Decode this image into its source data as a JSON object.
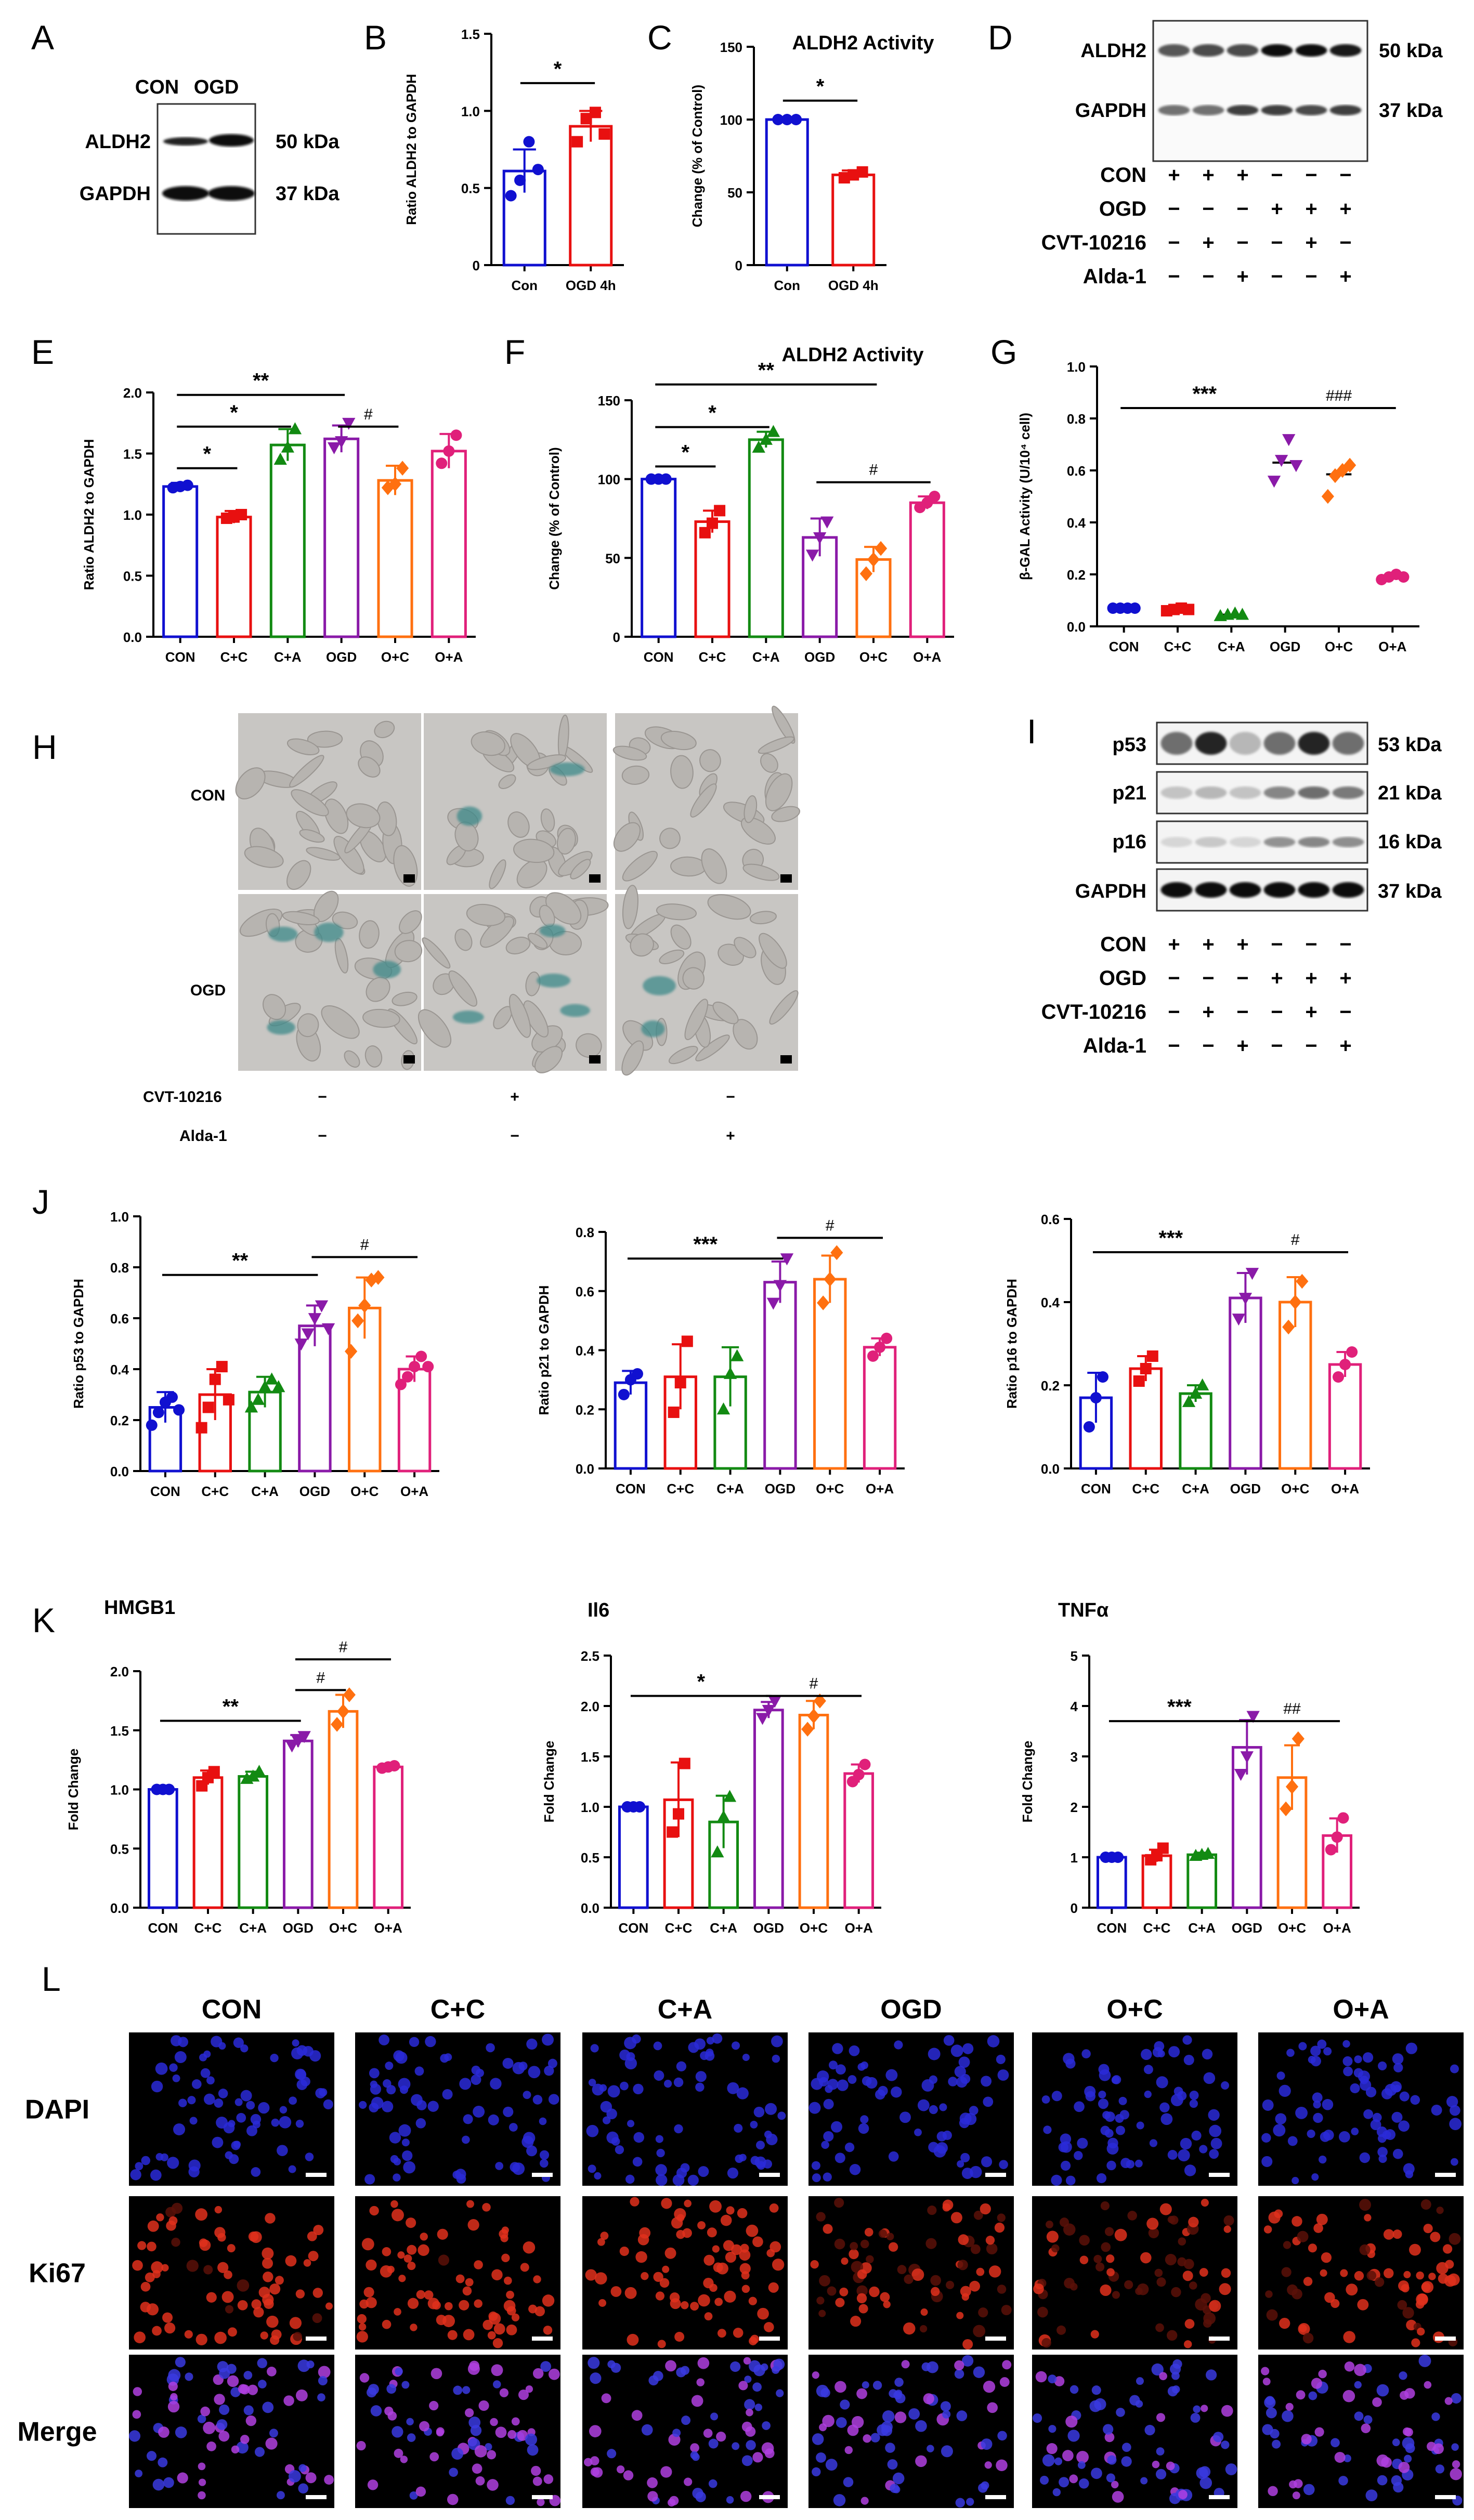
{
  "panel_labels": [
    "A",
    "B",
    "C",
    "D",
    "E",
    "F",
    "G",
    "H",
    "I",
    "J",
    "K",
    "L"
  ],
  "blot_A": {
    "lanes": [
      "CON",
      "OGD"
    ],
    "rows": [
      {
        "name": "ALDH2",
        "kda": "50 kDa"
      },
      {
        "name": "GAPDH",
        "kda": "37 kDa"
      }
    ]
  },
  "blot_D": {
    "rows": [
      {
        "name": "ALDH2",
        "kda": "50 kDa"
      },
      {
        "name": "GAPDH",
        "kda": "37 kDa"
      }
    ],
    "conditions": [
      {
        "name": "CON",
        "signs": [
          "+",
          "+",
          "+",
          "−",
          "−",
          "−"
        ]
      },
      {
        "name": "OGD",
        "signs": [
          "−",
          "−",
          "−",
          "+",
          "+",
          "+"
        ]
      },
      {
        "name": "CVT-10216",
        "signs": [
          "−",
          "+",
          "−",
          "−",
          "+",
          "−"
        ]
      },
      {
        "name": "Alda-1",
        "signs": [
          "−",
          "−",
          "+",
          "−",
          "−",
          "+"
        ]
      }
    ]
  },
  "blot_I": {
    "rows": [
      {
        "name": "p53",
        "kda": "53 kDa"
      },
      {
        "name": "p21",
        "kda": "21 kDa"
      },
      {
        "name": "p16",
        "kda": "16 kDa"
      },
      {
        "name": "GAPDH",
        "kda": "37 kDa"
      }
    ],
    "conditions": [
      {
        "name": "CON",
        "signs": [
          "+",
          "+",
          "+",
          "−",
          "−",
          "−"
        ]
      },
      {
        "name": "OGD",
        "signs": [
          "−",
          "−",
          "−",
          "+",
          "+",
          "+"
        ]
      },
      {
        "name": "CVT-10216",
        "signs": [
          "−",
          "+",
          "−",
          "−",
          "+",
          "−"
        ]
      },
      {
        "name": "Alda-1",
        "signs": [
          "−",
          "−",
          "+",
          "−",
          "−",
          "+"
        ]
      }
    ]
  },
  "micro_H": {
    "rows": [
      "CON",
      "OGD"
    ],
    "conditions": [
      {
        "name": "CVT-10216",
        "signs": [
          "−",
          "+",
          "−"
        ]
      },
      {
        "name": "Alda-1",
        "signs": [
          "−",
          "−",
          "+"
        ]
      }
    ]
  },
  "micro_L": {
    "columns": [
      "CON",
      "C+C",
      "C+A",
      "OGD",
      "O+C",
      "O+A"
    ],
    "rows": [
      "DAPI",
      "Ki67",
      "Merge"
    ]
  },
  "colors": {
    "CON": "#1010d0",
    "C+C": "#e81010",
    "C+A": "#128a12",
    "OGD": "#8a1aa8",
    "O+C": "#ff7010",
    "O+A": "#e0207a"
  },
  "chart_data": [
    {
      "id": "B",
      "type": "bar",
      "title": "",
      "ylabel": "Ratio ALDH2 to GAPDH",
      "categories": [
        "Con",
        "OGD 4h"
      ],
      "values": [
        0.61,
        0.9
      ],
      "err": [
        0.14,
        0.1
      ],
      "ylim": [
        0,
        1.5
      ],
      "yticks": [
        "0",
        "0.5",
        "1.0",
        "1.5"
      ],
      "points": [
        [
          0.45,
          0.55,
          0.8,
          0.62
        ],
        [
          0.8,
          0.95,
          0.99,
          0.85
        ]
      ],
      "markers": [
        "circle",
        "square"
      ],
      "colors": [
        "#1010d0",
        "#e81010"
      ],
      "sig": [
        {
          "from": 0,
          "to": 1,
          "text": "*",
          "y": 1.18
        }
      ]
    },
    {
      "id": "C",
      "type": "bar",
      "title": "ALDH2 Activity",
      "ylabel": "Change (% of Control)",
      "categories": [
        "Con",
        "OGD 4h"
      ],
      "values": [
        100,
        62
      ],
      "err": [
        0,
        3
      ],
      "ylim": [
        0,
        150
      ],
      "yticks": [
        "0",
        "50",
        "100",
        "150"
      ],
      "points": [
        [
          100,
          100,
          100
        ],
        [
          60,
          62,
          64
        ]
      ],
      "markers": [
        "circle",
        "square"
      ],
      "colors": [
        "#1010d0",
        "#e81010"
      ],
      "sig": [
        {
          "from": 0,
          "to": 1,
          "text": "*",
          "y": 113
        }
      ]
    },
    {
      "id": "E",
      "type": "bar",
      "title": "",
      "ylabel": "Ratio ALDH2 to GAPDH",
      "categories": [
        "CON",
        "C+C",
        "C+A",
        "OGD",
        "O+C",
        "O+A"
      ],
      "values": [
        1.23,
        0.98,
        1.57,
        1.62,
        1.28,
        1.52
      ],
      "err": [
        0.03,
        0.05,
        0.13,
        0.11,
        0.12,
        0.14
      ],
      "ylim": [
        0,
        2.0
      ],
      "yticks": [
        "0.0",
        "0.5",
        "1.0",
        "1.5",
        "2.0"
      ],
      "points": [
        [
          1.22,
          1.23,
          1.24
        ],
        [
          0.97,
          0.98,
          1.0
        ],
        [
          1.45,
          1.55,
          1.7
        ],
        [
          1.55,
          1.6,
          1.75
        ],
        [
          1.22,
          1.25,
          1.38
        ],
        [
          1.42,
          1.52,
          1.65
        ]
      ],
      "markers": [
        "circle",
        "square",
        "triangle",
        "tridown",
        "diamond",
        "circle"
      ],
      "colors": [
        "#1010d0",
        "#e81010",
        "#128a12",
        "#8a1aa8",
        "#ff7010",
        "#e0207a"
      ],
      "sig": [
        {
          "from": 0,
          "to": 1,
          "text": "*",
          "y": 1.38
        },
        {
          "from": 0,
          "to": 2,
          "text": "*",
          "y": 1.72
        },
        {
          "from": 0,
          "to": 3,
          "text": "**",
          "y": 1.98
        },
        {
          "from": 3,
          "to": 4,
          "text": "#",
          "y": 1.72
        }
      ]
    },
    {
      "id": "F",
      "type": "bar",
      "title": "ALDH2 Activity",
      "ylabel": "Change (% of Control)",
      "categories": [
        "CON",
        "C+C",
        "C+A",
        "OGD",
        "O+C",
        "O+A"
      ],
      "values": [
        100,
        73,
        125,
        63,
        49,
        85
      ],
      "err": [
        0,
        7,
        5,
        12,
        8,
        4
      ],
      "ylim": [
        0,
        150
      ],
      "yticks": [
        "0",
        "50",
        "100",
        "150"
      ],
      "points": [
        [
          100,
          100,
          100
        ],
        [
          66,
          72,
          80
        ],
        [
          120,
          125,
          130
        ],
        [
          52,
          63,
          73
        ],
        [
          40,
          49,
          56
        ],
        [
          82,
          85,
          89
        ]
      ],
      "markers": [
        "circle",
        "square",
        "triangle",
        "tridown",
        "diamond",
        "circle"
      ],
      "colors": [
        "#1010d0",
        "#e81010",
        "#128a12",
        "#8a1aa8",
        "#ff7010",
        "#e0207a"
      ],
      "sig": [
        {
          "from": 0,
          "to": 1,
          "text": "*",
          "y": 108
        },
        {
          "from": 0,
          "to": 2,
          "text": "*",
          "y": 133
        },
        {
          "from": 0,
          "to": 4,
          "text": "**",
          "y": 160
        },
        {
          "from": 3,
          "to": 5,
          "text": "#",
          "y": 98
        }
      ]
    },
    {
      "id": "G",
      "type": "dot",
      "title": "",
      "ylabel": "β-GAL Activity (U/10⁴ cell)",
      "categories": [
        "CON",
        "C+C",
        "C+A",
        "OGD",
        "O+C",
        "O+A"
      ],
      "values": [
        0.07,
        0.065,
        0.045,
        0.63,
        0.585,
        0.19
      ],
      "ylim": [
        0,
        1.0
      ],
      "yticks": [
        "0.0",
        "0.2",
        "0.4",
        "0.6",
        "0.8",
        "1.0"
      ],
      "points": [
        [
          0.07,
          0.07,
          0.07,
          0.07
        ],
        [
          0.06,
          0.065,
          0.07,
          0.065
        ],
        [
          0.04,
          0.045,
          0.05,
          0.045
        ],
        [
          0.56,
          0.64,
          0.72,
          0.62
        ],
        [
          0.5,
          0.58,
          0.6,
          0.62
        ],
        [
          0.18,
          0.19,
          0.2,
          0.19
        ]
      ],
      "markers": [
        "circle",
        "square",
        "triangle",
        "tridown",
        "diamond",
        "circle"
      ],
      "colors": [
        "#1010d0",
        "#e81010",
        "#128a12",
        "#8a1aa8",
        "#ff7010",
        "#e0207a"
      ],
      "sig": [
        {
          "from": 0,
          "to": 3,
          "text": "***",
          "y": 0.84
        },
        {
          "from": 3,
          "to": 5,
          "text": "###",
          "y": 0.84
        }
      ]
    },
    {
      "id": "J1",
      "type": "bar",
      "title": "",
      "ylabel": "Ratio p53 to GAPDH",
      "categories": [
        "CON",
        "C+C",
        "C+A",
        "OGD",
        "O+C",
        "O+A"
      ],
      "values": [
        0.25,
        0.3,
        0.31,
        0.57,
        0.64,
        0.4
      ],
      "err": [
        0.06,
        0.1,
        0.06,
        0.08,
        0.12,
        0.05
      ],
      "ylim": [
        0,
        1.0
      ],
      "yticks": [
        "0.0",
        "0.2",
        "0.4",
        "0.6",
        "0.8",
        "1.0"
      ],
      "points": [
        [
          0.18,
          0.23,
          0.27,
          0.29,
          0.24
        ],
        [
          0.17,
          0.25,
          0.36,
          0.41,
          0.28
        ],
        [
          0.25,
          0.28,
          0.33,
          0.36,
          0.33
        ],
        [
          0.5,
          0.54,
          0.6,
          0.65,
          0.56
        ],
        [
          0.47,
          0.59,
          0.65,
          0.75,
          0.76
        ],
        [
          0.34,
          0.37,
          0.41,
          0.45,
          0.41
        ]
      ],
      "markers": [
        "circle",
        "square",
        "triangle",
        "tridown",
        "diamond",
        "circle"
      ],
      "colors": [
        "#1010d0",
        "#e81010",
        "#128a12",
        "#8a1aa8",
        "#ff7010",
        "#e0207a"
      ],
      "sig": [
        {
          "from": 0,
          "to": 3,
          "text": "**",
          "y": 0.77
        },
        {
          "from": 3,
          "to": 5,
          "text": "#",
          "y": 0.84
        }
      ]
    },
    {
      "id": "J2",
      "type": "bar",
      "title": "",
      "ylabel": "Ratio p21 to GAPDH",
      "categories": [
        "CON",
        "C+C",
        "C+A",
        "OGD",
        "O+C",
        "O+A"
      ],
      "values": [
        0.29,
        0.31,
        0.31,
        0.63,
        0.64,
        0.41
      ],
      "err": [
        0.04,
        0.11,
        0.1,
        0.07,
        0.08,
        0.03
      ],
      "ylim": [
        0,
        0.8
      ],
      "yticks": [
        "0.0",
        "0.2",
        "0.4",
        "0.6",
        "0.8"
      ],
      "points": [
        [
          0.25,
          0.3,
          0.32
        ],
        [
          0.19,
          0.29,
          0.43
        ],
        [
          0.2,
          0.32,
          0.38
        ],
        [
          0.56,
          0.62,
          0.71
        ],
        [
          0.56,
          0.64,
          0.73
        ],
        [
          0.38,
          0.41,
          0.44
        ]
      ],
      "markers": [
        "circle",
        "square",
        "triangle",
        "tridown",
        "diamond",
        "circle"
      ],
      "colors": [
        "#1010d0",
        "#e81010",
        "#128a12",
        "#8a1aa8",
        "#ff7010",
        "#e0207a"
      ],
      "sig": [
        {
          "from": 0,
          "to": 3,
          "text": "***",
          "y": 0.71
        },
        {
          "from": 3,
          "to": 5,
          "text": "#",
          "y": 0.78
        }
      ]
    },
    {
      "id": "J3",
      "type": "bar",
      "title": "",
      "ylabel": "Ratio p16 to GAPDH",
      "categories": [
        "CON",
        "C+C",
        "C+A",
        "OGD",
        "O+C",
        "O+A"
      ],
      "values": [
        0.17,
        0.24,
        0.18,
        0.41,
        0.4,
        0.25
      ],
      "err": [
        0.06,
        0.03,
        0.02,
        0.06,
        0.06,
        0.03
      ],
      "ylim": [
        0,
        0.6
      ],
      "yticks": [
        "0.0",
        "0.2",
        "0.4",
        "0.6"
      ],
      "points": [
        [
          0.1,
          0.17,
          0.22
        ],
        [
          0.21,
          0.24,
          0.27
        ],
        [
          0.16,
          0.18,
          0.2
        ],
        [
          0.36,
          0.41,
          0.47
        ],
        [
          0.34,
          0.4,
          0.45
        ],
        [
          0.22,
          0.25,
          0.28
        ]
      ],
      "markers": [
        "circle",
        "square",
        "triangle",
        "tridown",
        "diamond",
        "circle"
      ],
      "colors": [
        "#1010d0",
        "#e81010",
        "#128a12",
        "#8a1aa8",
        "#ff7010",
        "#e0207a"
      ],
      "sig": [
        {
          "from": 0,
          "to": 3,
          "text": "***",
          "y": 0.52
        },
        {
          "from": 3,
          "to": 5,
          "text": "#",
          "y": 0.52
        }
      ]
    },
    {
      "id": "K1",
      "type": "bar",
      "title": "HMGB1",
      "ylabel": "Fold Change",
      "categories": [
        "CON",
        "C+C",
        "C+A",
        "OGD",
        "O+C",
        "O+A"
      ],
      "values": [
        1.0,
        1.1,
        1.11,
        1.41,
        1.66,
        1.19
      ],
      "err": [
        0,
        0.06,
        0.04,
        0.05,
        0.14,
        0.02
      ],
      "ylim": [
        0,
        2.0
      ],
      "yticks": [
        "0.0",
        "0.5",
        "1.0",
        "1.5",
        "2.0"
      ],
      "points": [
        [
          1.0,
          1.0,
          1.0
        ],
        [
          1.03,
          1.1,
          1.15
        ],
        [
          1.09,
          1.11,
          1.15
        ],
        [
          1.37,
          1.41,
          1.45
        ],
        [
          1.55,
          1.66,
          1.8
        ],
        [
          1.18,
          1.19,
          1.2
        ]
      ],
      "markers": [
        "circle",
        "square",
        "triangle",
        "tridown",
        "diamond",
        "circle"
      ],
      "colors": [
        "#1010d0",
        "#e81010",
        "#128a12",
        "#8a1aa8",
        "#ff7010",
        "#e0207a"
      ],
      "sig": [
        {
          "from": 0,
          "to": 3,
          "text": "**",
          "y": 1.58
        },
        {
          "from": 3,
          "to": 4,
          "text": "#",
          "y": 1.84
        },
        {
          "from": 3,
          "to": 5,
          "text": "#",
          "y": 2.1
        }
      ]
    },
    {
      "id": "K2",
      "type": "bar",
      "title": "Il6",
      "ylabel": "Fold Change",
      "categories": [
        "CON",
        "C+C",
        "C+A",
        "OGD",
        "O+C",
        "O+A"
      ],
      "values": [
        1.0,
        1.07,
        0.85,
        1.96,
        1.91,
        1.33
      ],
      "err": [
        0,
        0.37,
        0.26,
        0.08,
        0.14,
        0.09
      ],
      "ylim": [
        0,
        2.5
      ],
      "yticks": [
        "0.0",
        "0.5",
        "1.0",
        "1.5",
        "2.0",
        "2.5"
      ],
      "points": [
        [
          1.0,
          1.0,
          1.0
        ],
        [
          0.75,
          0.93,
          1.43
        ],
        [
          0.55,
          0.9,
          1.1
        ],
        [
          1.88,
          1.96,
          2.05
        ],
        [
          1.77,
          1.9,
          2.05
        ],
        [
          1.25,
          1.32,
          1.42
        ]
      ],
      "markers": [
        "circle",
        "square",
        "triangle",
        "tridown",
        "diamond",
        "circle"
      ],
      "colors": [
        "#1010d0",
        "#e81010",
        "#128a12",
        "#8a1aa8",
        "#ff7010",
        "#e0207a"
      ],
      "sig": [
        {
          "from": 0,
          "to": 3,
          "text": "*",
          "y": 2.1
        },
        {
          "from": 3,
          "to": 5,
          "text": "#",
          "y": 2.1
        }
      ]
    },
    {
      "id": "K3",
      "type": "bar",
      "title": "TNFα",
      "ylabel": "Fold Change",
      "categories": [
        "CON",
        "C+C",
        "C+A",
        "OGD",
        "O+C",
        "O+A"
      ],
      "values": [
        1.0,
        1.03,
        1.05,
        3.18,
        2.58,
        1.43
      ],
      "err": [
        0,
        0.12,
        0.04,
        0.54,
        0.64,
        0.34
      ],
      "ylim": [
        0,
        5
      ],
      "yticks": [
        "0",
        "1",
        "2",
        "3",
        "4",
        "5"
      ],
      "points": [
        [
          1.0,
          1.0,
          1.0
        ],
        [
          0.95,
          1.03,
          1.18
        ],
        [
          1.03,
          1.05,
          1.07
        ],
        [
          2.65,
          3.0,
          3.8
        ],
        [
          1.96,
          2.4,
          3.35
        ],
        [
          1.15,
          1.4,
          1.78
        ]
      ],
      "markers": [
        "circle",
        "square",
        "triangle",
        "tridown",
        "diamond",
        "circle"
      ],
      "colors": [
        "#1010d0",
        "#e81010",
        "#128a12",
        "#8a1aa8",
        "#ff7010",
        "#e0207a"
      ],
      "sig": [
        {
          "from": 0,
          "to": 3,
          "text": "***",
          "y": 3.7
        },
        {
          "from": 3,
          "to": 5,
          "text": "##",
          "y": 3.7
        }
      ]
    }
  ]
}
